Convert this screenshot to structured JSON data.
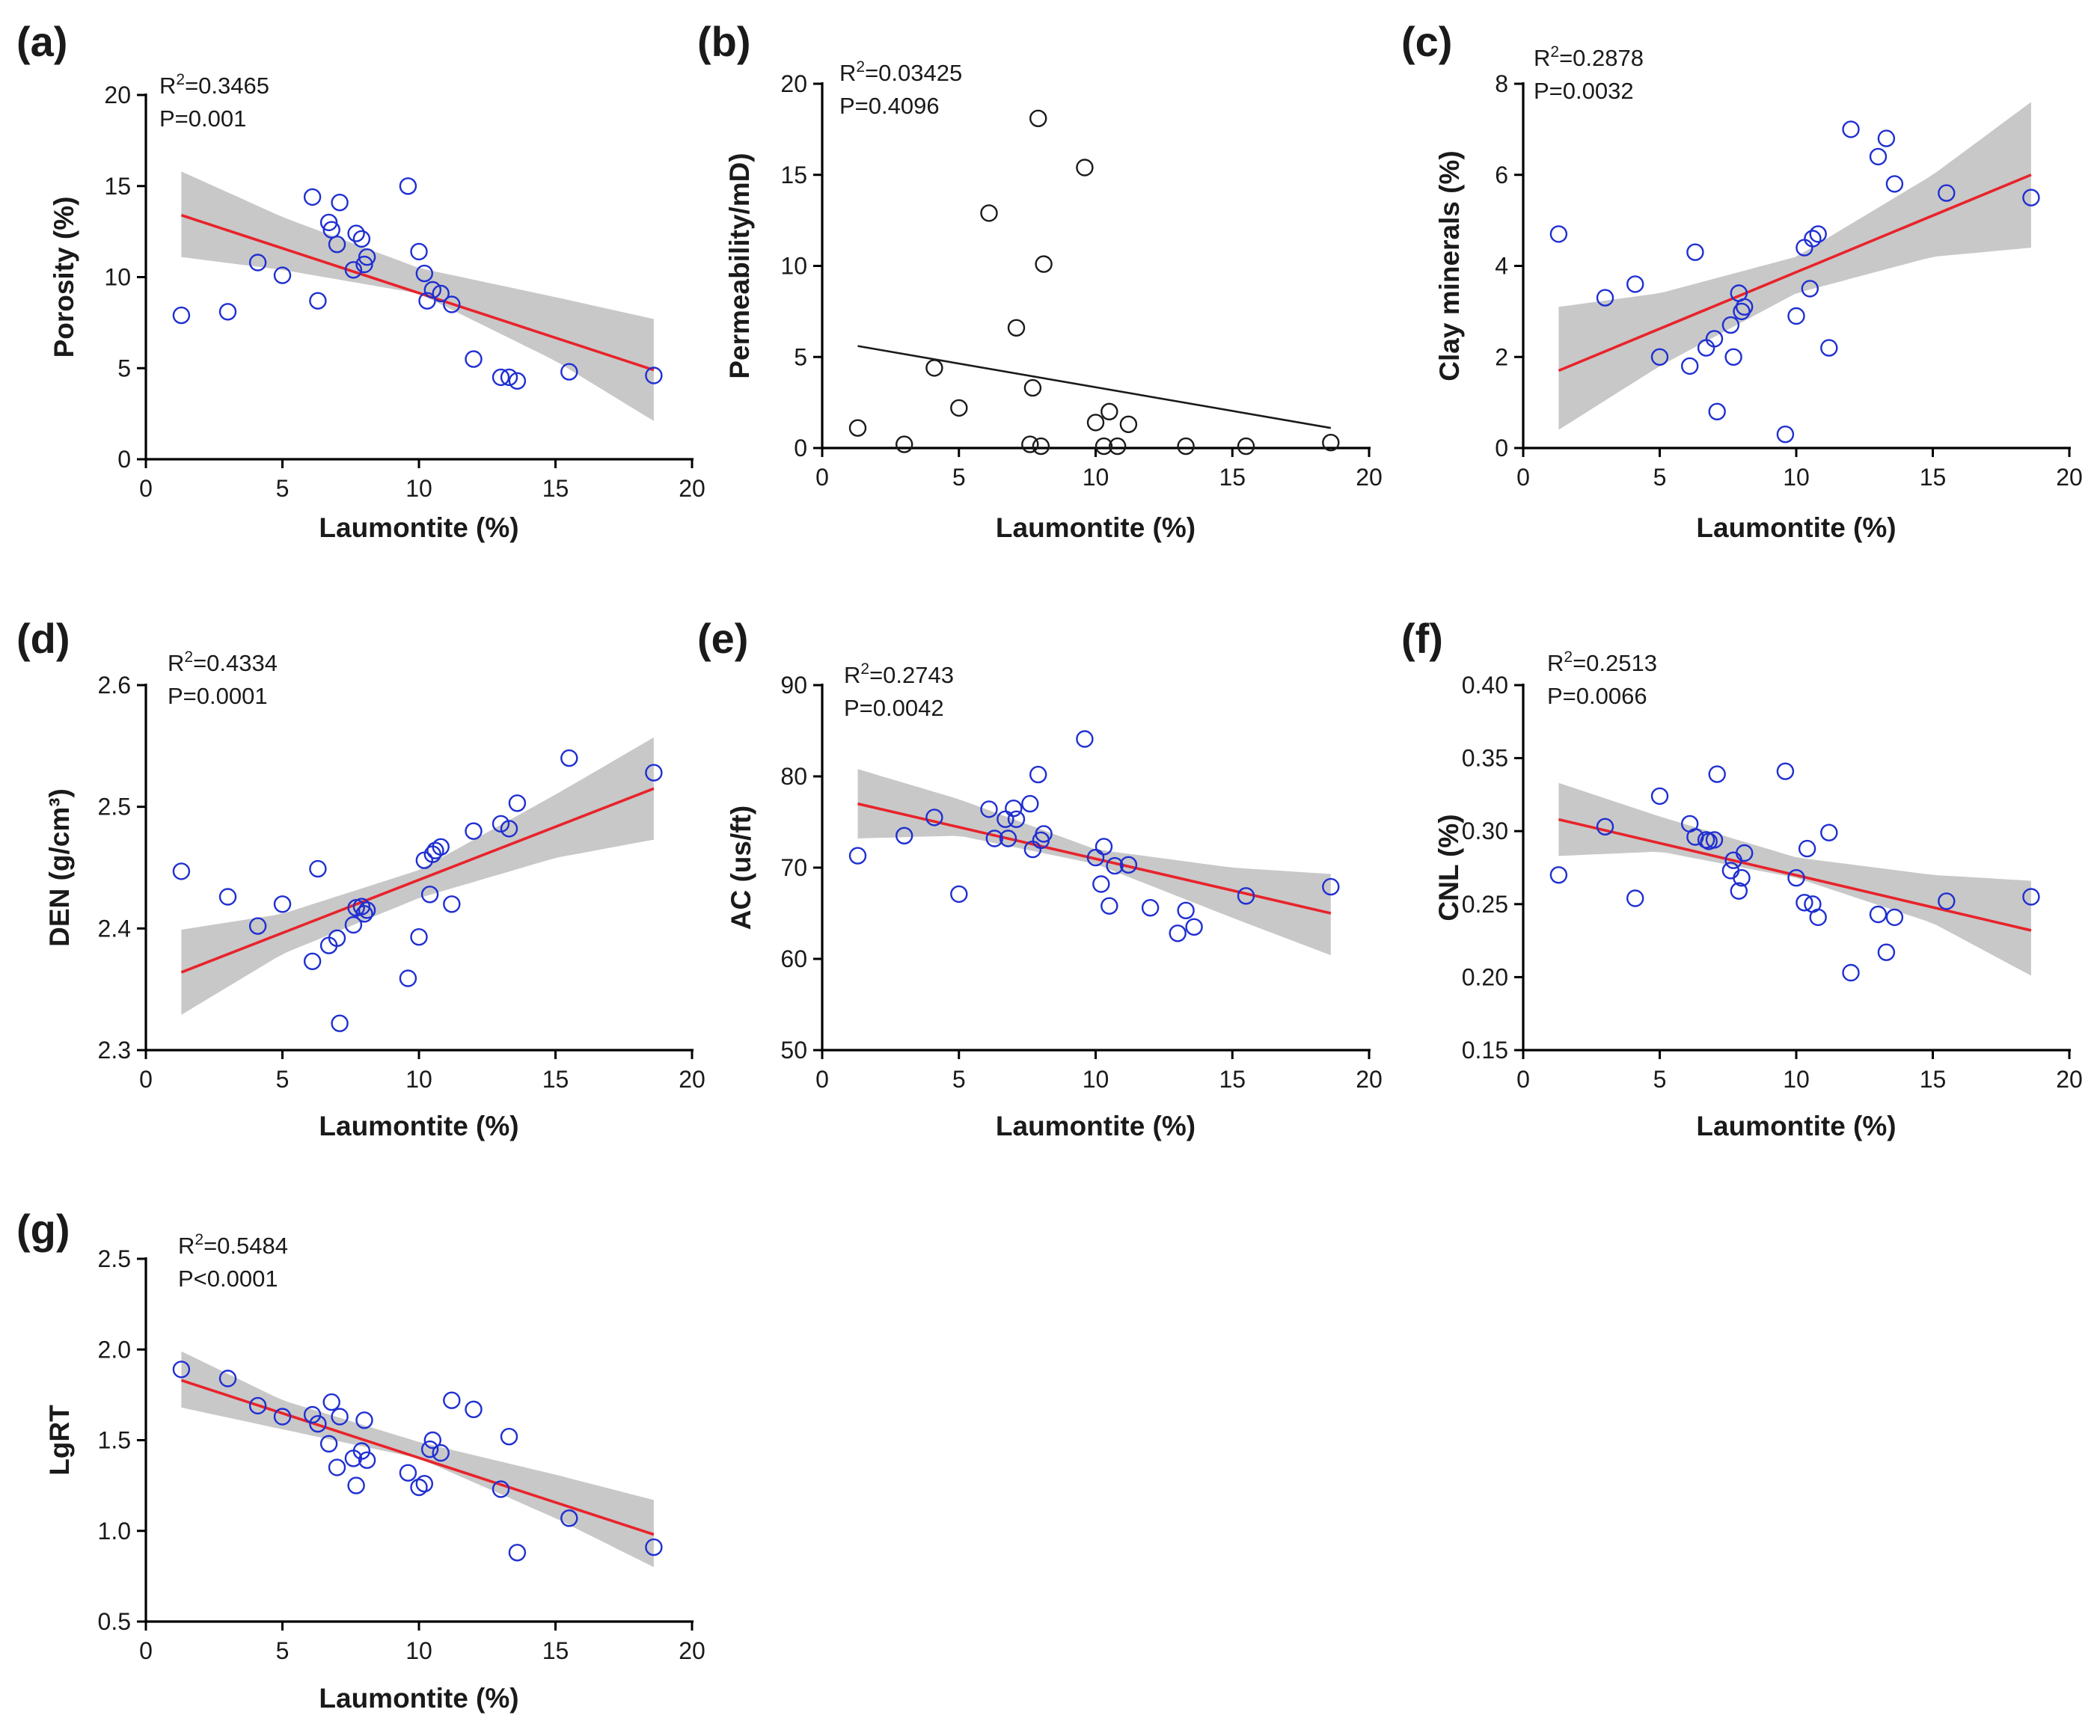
{
  "colors": {
    "point_blue": "#1f2fd1",
    "point_black": "#1a1a1a",
    "fit_red": "#e8232b",
    "fit_black": "#1a1a1a",
    "confidence_band": "#c8c8c8"
  },
  "chart_data": [
    {
      "panel": "(a)",
      "type": "scatter",
      "xlabel": "Laumontite (%)",
      "ylabel": "Porosity (%)",
      "xlim": [
        0,
        20
      ],
      "ylim": [
        0,
        20
      ],
      "xticks": [
        0,
        5,
        10,
        15,
        20
      ],
      "yticks": [
        0,
        5,
        10,
        15,
        20
      ],
      "ytick_labels": [
        "0",
        "5",
        "10",
        "15",
        "20"
      ],
      "r2_text": "=0.3465",
      "p_text": "P=0.001",
      "point_color": "point_blue",
      "fit_color": "fit_red",
      "band": true,
      "fit": {
        "x": [
          1.3,
          18.6
        ],
        "y": [
          13.4,
          4.9
        ]
      },
      "band_upper": {
        "x": [
          1.3,
          5,
          10,
          15,
          18.6
        ],
        "y": [
          15.8,
          13.3,
          10.5,
          8.9,
          7.7
        ]
      },
      "band_lower": {
        "x": [
          1.3,
          5,
          10,
          15,
          18.6
        ],
        "y": [
          11.1,
          10.4,
          9.1,
          5.4,
          2.1
        ]
      },
      "points": {
        "x": [
          1.3,
          3.0,
          4.1,
          5.0,
          6.1,
          6.3,
          6.7,
          6.8,
          7.0,
          7.1,
          7.6,
          7.7,
          7.9,
          8.0,
          8.1,
          9.6,
          10.0,
          10.2,
          10.3,
          10.5,
          10.8,
          11.2,
          12.0,
          13.0,
          13.3,
          13.6,
          15.5,
          18.6
        ],
        "y": [
          7.9,
          8.1,
          10.8,
          10.1,
          14.4,
          8.7,
          13.0,
          12.6,
          11.8,
          14.1,
          10.4,
          12.4,
          12.1,
          10.7,
          11.1,
          15.0,
          11.4,
          10.2,
          8.7,
          9.3,
          9.1,
          8.5,
          5.5,
          4.5,
          4.5,
          4.3,
          4.8,
          4.6
        ]
      }
    },
    {
      "panel": "(b)",
      "type": "scatter",
      "xlabel": "Laumontite (%)",
      "ylabel": "Permeability/mD)",
      "xlim": [
        0,
        20
      ],
      "ylim": [
        0,
        20
      ],
      "xticks": [
        0,
        5,
        10,
        15,
        20
      ],
      "yticks": [
        0,
        5,
        10,
        15,
        20
      ],
      "ytick_labels": [
        "0",
        "5",
        "10",
        "15",
        "20"
      ],
      "r2_text": "=0.03425",
      "p_text": "P=0.4096",
      "point_color": "point_black",
      "fit_color": "fit_black",
      "band": false,
      "fit": {
        "x": [
          1.3,
          18.6
        ],
        "y": [
          5.6,
          1.1
        ]
      },
      "points": {
        "x": [
          1.3,
          3.0,
          4.1,
          5.0,
          6.1,
          7.1,
          7.6,
          7.7,
          7.9,
          8.0,
          8.1,
          9.6,
          10.0,
          10.3,
          10.5,
          10.8,
          11.2,
          13.3,
          15.5,
          18.6
        ],
        "y": [
          1.1,
          0.2,
          4.4,
          2.2,
          12.9,
          6.6,
          0.2,
          3.3,
          18.1,
          0.1,
          10.1,
          15.4,
          1.4,
          0.1,
          2.0,
          0.1,
          1.3,
          0.1,
          0.1,
          0.3
        ]
      }
    },
    {
      "panel": "(c)",
      "type": "scatter",
      "xlabel": "Laumontite (%)",
      "ylabel": "Clay minerals (%)",
      "xlim": [
        0,
        20
      ],
      "ylim": [
        0,
        8
      ],
      "xticks": [
        0,
        5,
        10,
        15,
        20
      ],
      "yticks": [
        0,
        2,
        4,
        6,
        8
      ],
      "ytick_labels": [
        "0",
        "2",
        "4",
        "6",
        "8"
      ],
      "r2_text": "=0.2878",
      "p_text": "P=0.0032",
      "point_color": "point_blue",
      "fit_color": "fit_red",
      "band": true,
      "fit": {
        "x": [
          1.3,
          18.6
        ],
        "y": [
          1.7,
          6.0
        ]
      },
      "band_upper": {
        "x": [
          1.3,
          5,
          10,
          15,
          18.6
        ],
        "y": [
          3.1,
          3.4,
          4.2,
          6.0,
          7.6
        ]
      },
      "band_lower": {
        "x": [
          1.3,
          5,
          10,
          15,
          18.6
        ],
        "y": [
          0.4,
          1.8,
          3.4,
          4.2,
          4.4
        ]
      },
      "points": {
        "x": [
          1.3,
          3.0,
          4.1,
          5.0,
          6.1,
          6.3,
          6.7,
          7.0,
          7.1,
          7.6,
          7.7,
          7.9,
          8.0,
          8.1,
          9.6,
          10.0,
          10.3,
          10.5,
          10.6,
          10.8,
          11.2,
          12.0,
          13.0,
          13.3,
          13.6,
          15.5,
          18.6
        ],
        "y": [
          4.7,
          3.3,
          3.6,
          2.0,
          1.8,
          4.3,
          2.2,
          2.4,
          0.8,
          2.7,
          2.0,
          3.4,
          3.0,
          3.1,
          0.3,
          2.9,
          4.4,
          3.5,
          4.6,
          4.7,
          2.2,
          7.0,
          6.4,
          6.8,
          5.8,
          5.6,
          5.5
        ]
      }
    },
    {
      "panel": "(d)",
      "type": "scatter",
      "xlabel": "Laumontite (%)",
      "ylabel": "DEN (g/cm³)",
      "xlim": [
        0,
        20
      ],
      "ylim": [
        2.3,
        2.6
      ],
      "xticks": [
        0,
        5,
        10,
        15,
        20
      ],
      "yticks": [
        2.3,
        2.4,
        2.5,
        2.6
      ],
      "ytick_labels": [
        "2.3",
        "2.4",
        "2.5",
        "2.6"
      ],
      "r2_text": "=0.4334",
      "p_text": "P=0.0001",
      "point_color": "point_blue",
      "fit_color": "fit_red",
      "band": true,
      "fit": {
        "x": [
          1.3,
          18.6
        ],
        "y": [
          2.364,
          2.515
        ]
      },
      "band_upper": {
        "x": [
          1.3,
          5,
          10,
          15,
          18.6
        ],
        "y": [
          2.399,
          2.412,
          2.448,
          2.51,
          2.557
        ]
      },
      "band_lower": {
        "x": [
          1.3,
          5,
          10,
          15,
          18.6
        ],
        "y": [
          2.329,
          2.379,
          2.425,
          2.458,
          2.473
        ]
      },
      "points": {
        "x": [
          1.3,
          3.0,
          4.1,
          5.0,
          6.1,
          6.3,
          6.7,
          7.0,
          7.1,
          7.6,
          7.7,
          7.9,
          8.0,
          8.1,
          9.6,
          10.0,
          10.2,
          10.4,
          10.5,
          10.6,
          10.8,
          11.2,
          12.0,
          13.0,
          13.3,
          13.6,
          15.5,
          18.6
        ],
        "y": [
          2.447,
          2.426,
          2.402,
          2.42,
          2.373,
          2.449,
          2.386,
          2.392,
          2.322,
          2.403,
          2.417,
          2.418,
          2.412,
          2.415,
          2.359,
          2.393,
          2.456,
          2.428,
          2.461,
          2.464,
          2.467,
          2.42,
          2.48,
          2.486,
          2.482,
          2.503,
          2.54,
          2.528
        ]
      }
    },
    {
      "panel": "(e)",
      "type": "scatter",
      "xlabel": "Laumontite (%)",
      "ylabel": "AC (us/ft)",
      "xlim": [
        0,
        20
      ],
      "ylim": [
        50,
        90
      ],
      "xticks": [
        0,
        5,
        10,
        15,
        20
      ],
      "yticks": [
        50,
        60,
        70,
        80,
        90
      ],
      "ytick_labels": [
        "50",
        "60",
        "70",
        "80",
        "90"
      ],
      "r2_text": "=0.2743",
      "p_text": "P=0.0042",
      "point_color": "point_blue",
      "fit_color": "fit_red",
      "band": true,
      "fit": {
        "x": [
          1.3,
          18.6
        ],
        "y": [
          77.0,
          65.0
        ]
      },
      "band_upper": {
        "x": [
          1.3,
          5,
          10,
          15,
          18.6
        ],
        "y": [
          80.8,
          77.5,
          72.0,
          70.0,
          69.3
        ]
      },
      "band_lower": {
        "x": [
          1.3,
          5,
          10,
          15,
          18.6
        ],
        "y": [
          73.2,
          73.5,
          70.4,
          64.5,
          60.4
        ]
      },
      "points": {
        "x": [
          1.3,
          3.0,
          4.1,
          5.0,
          6.1,
          6.3,
          6.7,
          6.8,
          7.0,
          7.1,
          7.6,
          7.7,
          7.9,
          8.0,
          8.1,
          9.6,
          10.0,
          10.2,
          10.3,
          10.5,
          10.7,
          11.2,
          12.0,
          13.0,
          13.3,
          13.6,
          15.5,
          18.6
        ],
        "y": [
          71.3,
          73.5,
          75.5,
          67.1,
          76.4,
          73.2,
          75.3,
          73.2,
          76.5,
          75.3,
          77.0,
          72.0,
          80.2,
          73.0,
          73.7,
          84.1,
          71.1,
          68.2,
          72.3,
          65.8,
          70.2,
          70.3,
          65.6,
          62.8,
          65.3,
          63.5,
          66.9,
          67.9
        ]
      }
    },
    {
      "panel": "(f)",
      "type": "scatter",
      "xlabel": "Laumontite (%)",
      "ylabel": "CNL (%)",
      "xlim": [
        0,
        20
      ],
      "ylim": [
        0.15,
        0.4
      ],
      "xticks": [
        0,
        5,
        10,
        15,
        20
      ],
      "yticks": [
        0.15,
        0.2,
        0.25,
        0.3,
        0.35,
        0.4
      ],
      "ytick_labels": [
        "0.15",
        "0.20",
        "0.25",
        "0.30",
        "0.35",
        "0.40"
      ],
      "r2_text": "=0.2513",
      "p_text": "P=0.0066",
      "point_color": "point_blue",
      "fit_color": "fit_red",
      "band": true,
      "fit": {
        "x": [
          1.3,
          18.6
        ],
        "y": [
          0.308,
          0.232
        ]
      },
      "band_upper": {
        "x": [
          1.3,
          5,
          10,
          15,
          18.6
        ],
        "y": [
          0.333,
          0.31,
          0.282,
          0.27,
          0.266
        ]
      },
      "band_lower": {
        "x": [
          1.3,
          5,
          10,
          15,
          18.6
        ],
        "y": [
          0.283,
          0.286,
          0.268,
          0.237,
          0.201
        ]
      },
      "points": {
        "x": [
          1.3,
          3.0,
          4.1,
          5.0,
          6.1,
          6.3,
          6.7,
          6.8,
          7.0,
          7.1,
          7.6,
          7.7,
          7.9,
          8.0,
          8.1,
          9.6,
          10.0,
          10.3,
          10.4,
          10.6,
          10.8,
          11.2,
          12.0,
          13.0,
          13.3,
          13.6,
          15.5,
          18.6
        ],
        "y": [
          0.27,
          0.303,
          0.254,
          0.324,
          0.305,
          0.296,
          0.294,
          0.293,
          0.294,
          0.339,
          0.273,
          0.28,
          0.259,
          0.268,
          0.285,
          0.341,
          0.268,
          0.251,
          0.288,
          0.25,
          0.241,
          0.299,
          0.203,
          0.243,
          0.217,
          0.241,
          0.252,
          0.255
        ]
      }
    },
    {
      "panel": "(g)",
      "type": "scatter",
      "xlabel": "Laumontite (%)",
      "ylabel": "LgRT",
      "xlim": [
        0,
        20
      ],
      "ylim": [
        0.5,
        2.5
      ],
      "xticks": [
        0,
        5,
        10,
        15,
        20
      ],
      "yticks": [
        0.5,
        1.0,
        1.5,
        2.0,
        2.5
      ],
      "ytick_labels": [
        "0.5",
        "1.0",
        "1.5",
        "2.0",
        "2.5"
      ],
      "r2_text": "=0.5484",
      "p_text": "P<0.0001",
      "point_color": "point_blue",
      "fit_color": "fit_red",
      "band": true,
      "fit": {
        "x": [
          1.3,
          18.6
        ],
        "y": [
          1.83,
          0.98
        ]
      },
      "band_upper": {
        "x": [
          1.3,
          5,
          10,
          15,
          18.6
        ],
        "y": [
          1.99,
          1.72,
          1.49,
          1.31,
          1.17
        ]
      },
      "band_lower": {
        "x": [
          1.3,
          5,
          10,
          15,
          18.6
        ],
        "y": [
          1.68,
          1.56,
          1.4,
          1.07,
          0.8
        ]
      },
      "points": {
        "x": [
          1.3,
          3.0,
          4.1,
          5.0,
          6.1,
          6.3,
          6.7,
          6.8,
          7.0,
          7.1,
          7.6,
          7.7,
          7.9,
          8.0,
          8.1,
          9.6,
          10.0,
          10.2,
          10.4,
          10.5,
          10.8,
          11.2,
          12.0,
          13.0,
          13.3,
          13.6,
          15.5,
          18.6
        ],
        "y": [
          1.89,
          1.84,
          1.69,
          1.63,
          1.64,
          1.59,
          1.48,
          1.71,
          1.35,
          1.63,
          1.4,
          1.25,
          1.44,
          1.61,
          1.39,
          1.32,
          1.24,
          1.26,
          1.45,
          1.5,
          1.43,
          1.72,
          1.67,
          1.23,
          1.52,
          0.88,
          1.07,
          0.91
        ]
      }
    }
  ]
}
